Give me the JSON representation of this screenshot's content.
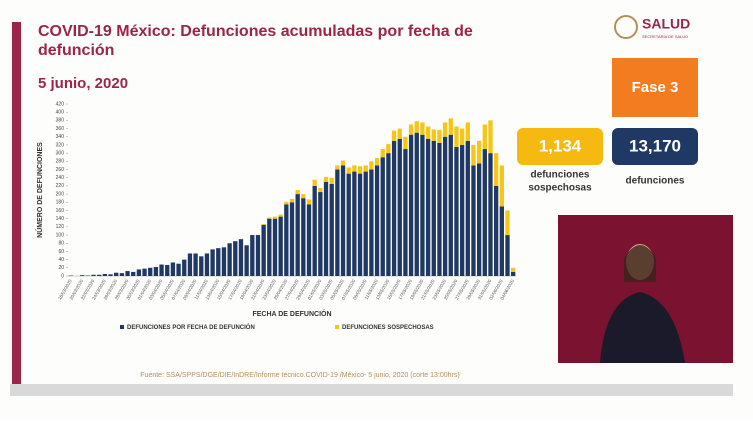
{
  "header": {
    "title_line1": "COVID-19 México: Defunciones acumuladas por fecha de",
    "title_line2": "defunción",
    "date": "5 junio, 2020",
    "logo": "SALUD",
    "logo_sub": "SECRETARÍA DE SALUD"
  },
  "stats": {
    "phase": "Fase 3",
    "suspected_value": "1,134",
    "suspected_label_1": "defunciones",
    "suspected_label_2": "sospechosas",
    "confirmed_value": "13,170",
    "confirmed_label": "defunciones"
  },
  "footer": {
    "source": "Fuente: SSA/SPPS/DGE/DIE/InDRE/Informe técnico.COVID-19 /México- 5 junio, 2020 (corte 13:00hrs)"
  },
  "chart_data": {
    "type": "stacked_bar",
    "y_label": "NÚMERO DE DEFUNCIONES",
    "x_label": "FECHA DE DEFUNCIÓN",
    "categories": [
      "18/03/2020",
      null,
      "20/03/2020",
      null,
      "22/03/2020",
      null,
      "24/03/2020",
      null,
      "26/03/2020",
      null,
      "28/03/2020",
      null,
      "30/03/2020",
      null,
      "01/04/2020",
      null,
      "03/04/2020",
      null,
      "05/04/2020",
      null,
      "07/04/2020",
      null,
      "09/04/2020",
      null,
      "11/04/2020",
      null,
      "13/04/2020",
      null,
      "15/04/2020",
      null,
      "17/04/2020",
      null,
      "19/04/2020",
      null,
      "21/04/2020",
      null,
      "23/04/2020",
      null,
      "25/04/2020",
      null,
      "27/04/2020",
      null,
      "29/04/2020",
      null,
      "01/05/2020",
      null,
      "03/05/2020",
      null,
      "05/05/2020",
      null,
      "07/05/2020",
      null,
      "09/05/2020",
      null,
      "11/05/2020",
      null,
      "13/05/2020",
      null,
      "15/05/2020",
      null,
      "17/05/2020",
      null,
      "19/05/2020",
      null,
      "21/05/2020",
      null,
      "23/05/2020",
      null,
      "25/05/2020",
      null,
      "27/05/2020",
      null,
      "29/05/2020",
      null,
      "31/05/2020",
      null,
      "02/06/2020",
      null,
      "04/06/2020"
    ],
    "series": [
      {
        "name": "DEFUNCIONES POR FECHA DE DEFUNCIÓN",
        "color": "#1f3864",
        "values": [
          1,
          0,
          2,
          1,
          3,
          3,
          5,
          4,
          8,
          7,
          12,
          10,
          16,
          18,
          20,
          22,
          28,
          27,
          33,
          30,
          40,
          55,
          55,
          48,
          55,
          65,
          68,
          70,
          80,
          85,
          90,
          75,
          100,
          100,
          125,
          140,
          140,
          145,
          175,
          180,
          200,
          190,
          175,
          220,
          205,
          230,
          225,
          260,
          270,
          250,
          255,
          250,
          255,
          260,
          270,
          290,
          300,
          330,
          335,
          310,
          345,
          350,
          345,
          335,
          330,
          325,
          340,
          345,
          315,
          320,
          330,
          270,
          275,
          310,
          300,
          220,
          170,
          100,
          10
        ]
      },
      {
        "name": "DEFUNCIONES SOSPECHOSAS",
        "color": "#f5c518",
        "values": [
          0,
          0,
          0,
          0,
          0,
          0,
          0,
          0,
          0,
          0,
          0,
          0,
          0,
          0,
          0,
          0,
          0,
          0,
          0,
          0,
          0,
          0,
          0,
          0,
          0,
          0,
          0,
          0,
          0,
          0,
          0,
          0,
          0,
          0,
          2,
          3,
          5,
          5,
          6,
          8,
          10,
          10,
          12,
          15,
          10,
          12,
          15,
          10,
          12,
          15,
          15,
          18,
          15,
          20,
          18,
          20,
          22,
          25,
          25,
          30,
          25,
          28,
          30,
          30,
          28,
          32,
          35,
          40,
          50,
          40,
          45,
          50,
          55,
          60,
          80,
          80,
          100,
          60,
          10
        ]
      }
    ],
    "ylim": [
      0,
      420
    ],
    "yticks": [
      0,
      20,
      40,
      60,
      80,
      100,
      120,
      140,
      160,
      180,
      200,
      220,
      240,
      260,
      280,
      300,
      320,
      340,
      360,
      380,
      400,
      420
    ]
  }
}
